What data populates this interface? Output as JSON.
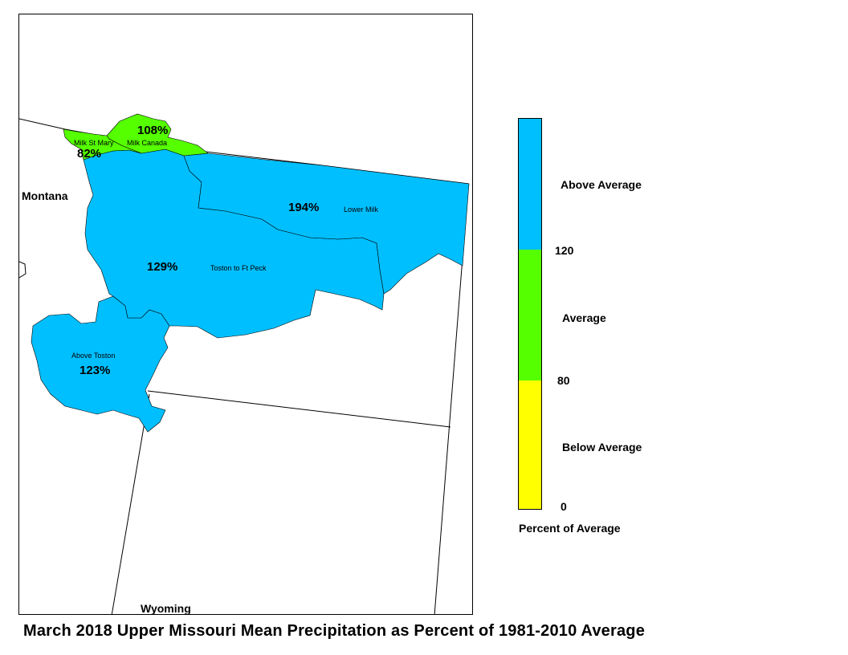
{
  "title": "March 2018 Upper Missouri Mean Precipitation as Percent of 1981-2010 Average",
  "states": {
    "montana": "Montana",
    "wyoming": "Wyoming"
  },
  "basins": [
    {
      "name": "Milk St Mary",
      "percent": "82%",
      "category": "Average"
    },
    {
      "name": "Milk Canada",
      "percent": "108%",
      "category": "Average"
    },
    {
      "name": "Lower Milk",
      "percent": "194%",
      "category": "Above Average"
    },
    {
      "name": "Toston to Ft Peck",
      "percent": "129%",
      "category": "Above Average"
    },
    {
      "name": "Above Toston",
      "percent": "123%",
      "category": "Above Average"
    }
  ],
  "legend": {
    "title": "Percent of Average",
    "categories": [
      {
        "label": "Above Average",
        "color": "#00BFFF"
      },
      {
        "label": "Average",
        "color": "#55FF00"
      },
      {
        "label": "Below Average",
        "color": "#FFFF00"
      }
    ],
    "breaks": [
      "120",
      "80",
      "0"
    ]
  }
}
